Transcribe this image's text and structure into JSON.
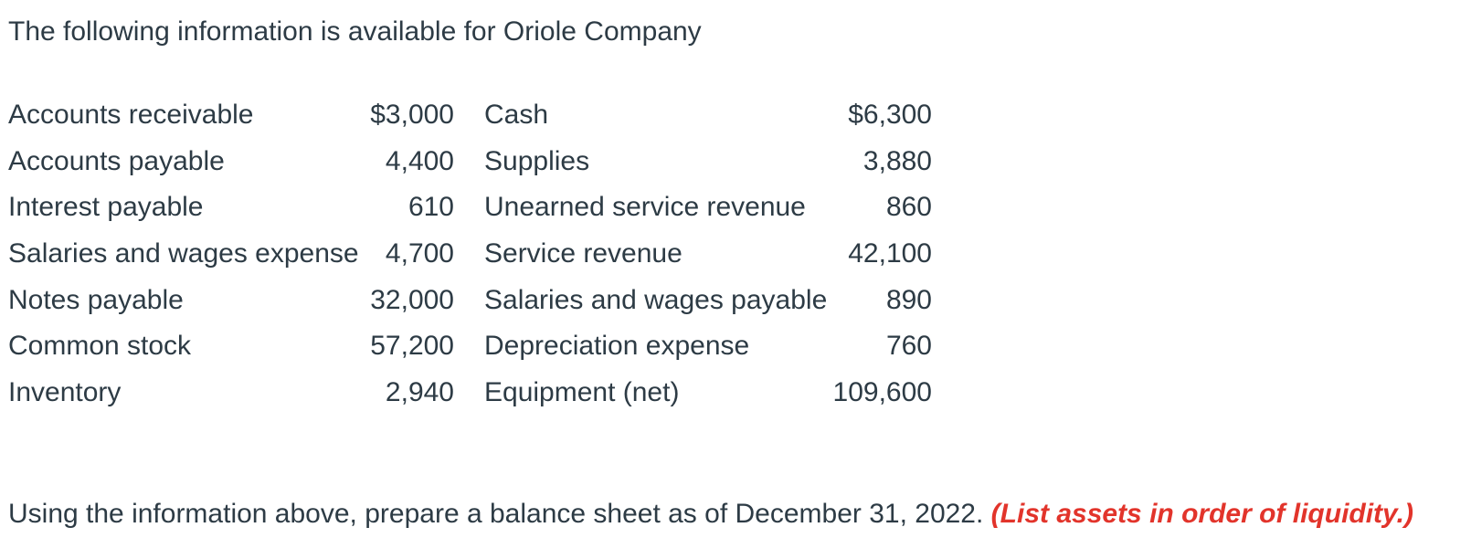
{
  "page": {
    "title": "The following information is available for Oriole Company",
    "instruction_prefix": "Using the information above, prepare a balance sheet as of December 31, 2022. ",
    "instruction_emphasis": "(List assets in order of liquidity.)"
  },
  "colors": {
    "text": "#2D3B45",
    "emphasis_red": "#E2342B",
    "background": "#FFFFFF"
  },
  "financials": {
    "rows": [
      {
        "left_label": "Accounts receivable",
        "left_value": "$3,000",
        "right_label": "Cash",
        "right_value": "$6,300"
      },
      {
        "left_label": "Accounts payable",
        "left_value": "4,400",
        "right_label": "Supplies",
        "right_value": "3,880"
      },
      {
        "left_label": "Interest payable",
        "left_value": "610",
        "right_label": "Unearned service revenue",
        "right_value": "860"
      },
      {
        "left_label": "Salaries and wages expense",
        "left_value": "4,700",
        "right_label": "Service revenue",
        "right_value": "42,100"
      },
      {
        "left_label": "Notes payable",
        "left_value": "32,000",
        "right_label": "Salaries and wages payable",
        "right_value": "890"
      },
      {
        "left_label": "Common stock",
        "left_value": "57,200",
        "right_label": "Depreciation expense",
        "right_value": "760"
      },
      {
        "left_label": "Inventory",
        "left_value": "2,940",
        "right_label": "Equipment (net)",
        "right_value": "109,600"
      }
    ]
  }
}
